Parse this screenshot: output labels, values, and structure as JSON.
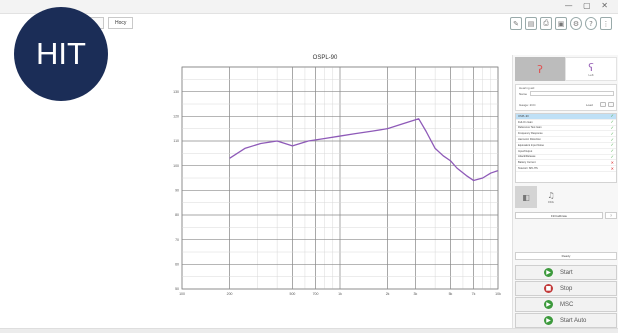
{
  "badge": {
    "text": "HIT"
  },
  "tabs": [
    {
      "label": ""
    },
    {
      "label": "Hocy"
    }
  ],
  "top_icons": [
    "edit-icon",
    "document-icon",
    "print-icon",
    "save-icon",
    "settings-icon",
    "help-icon",
    "menu-icon"
  ],
  "chart_data": {
    "type": "line",
    "title": "OSPL-90",
    "ylabel": "",
    "xlabel": "",
    "x_scale": "log",
    "xlim": [
      100,
      10000
    ],
    "ylim": [
      50,
      140
    ],
    "x_ticks": [
      100,
      200,
      500,
      700,
      1000,
      2000,
      3000,
      5000,
      7000,
      10000
    ],
    "y_ticks": [
      50,
      60,
      70,
      80,
      90,
      100,
      110,
      120,
      130
    ],
    "x": [
      200,
      250,
      315,
      400,
      500,
      630,
      800,
      1000,
      1250,
      1600,
      2000,
      2500,
      3150,
      3500,
      4000,
      4500,
      5000,
      5500,
      6300,
      7000,
      8000,
      9000,
      10000
    ],
    "series": [
      {
        "color": "#8e5ab8",
        "values": [
          103,
          107,
          109,
          110,
          108,
          110,
          111,
          112,
          113,
          114,
          115,
          117,
          119,
          114,
          107,
          104,
          102,
          99,
          96,
          94,
          95,
          97,
          98
        ]
      }
    ]
  },
  "right_panel": {
    "ears": [
      {
        "label": "",
        "color": "#e05050"
      },
      {
        "label": "Left",
        "color": "#9a64b8"
      }
    ],
    "fieldset": {
      "legend": "Hearing aid",
      "name_label": "Name",
      "name_value": "",
      "gauge_label": "Gauge: 2CC",
      "load_label": "Load"
    },
    "tests": [
      {
        "label": "OSPL-90",
        "status": "ok",
        "selected": true
      },
      {
        "label": "Full-On Gain",
        "status": "ok"
      },
      {
        "label": "Reference Test Gain",
        "status": "ok"
      },
      {
        "label": "Frequency Response",
        "status": "ok"
      },
      {
        "label": "Harmonic Distortion",
        "status": "ok"
      },
      {
        "label": "Equivalent Input Noise",
        "status": "ok"
      },
      {
        "label": "Input/Output",
        "status": "ok"
      },
      {
        "label": "Attack/Release",
        "status": "ok"
      },
      {
        "label": "Battery Current",
        "status": "bad"
      },
      {
        "label": "Telecoil / SPLITS",
        "status": "bad"
      }
    ],
    "modes": [
      {
        "label": "",
        "icon": "speaker-icon"
      },
      {
        "label": "FFA",
        "icon": "headphones-icon"
      }
    ],
    "fit_button": "Fit/Calibrate",
    "ready_button": "Ready",
    "actions": [
      {
        "label": "Start",
        "icon": "play-icon",
        "color": "green",
        "glyph": "▶"
      },
      {
        "label": "Stop",
        "icon": "stop-icon",
        "color": "red",
        "glyph": "■"
      },
      {
        "label": "MSC",
        "icon": "play-icon",
        "color": "green",
        "glyph": "▶"
      },
      {
        "label": "Start Auto",
        "icon": "play-icon",
        "color": "green",
        "glyph": "▶"
      }
    ]
  }
}
